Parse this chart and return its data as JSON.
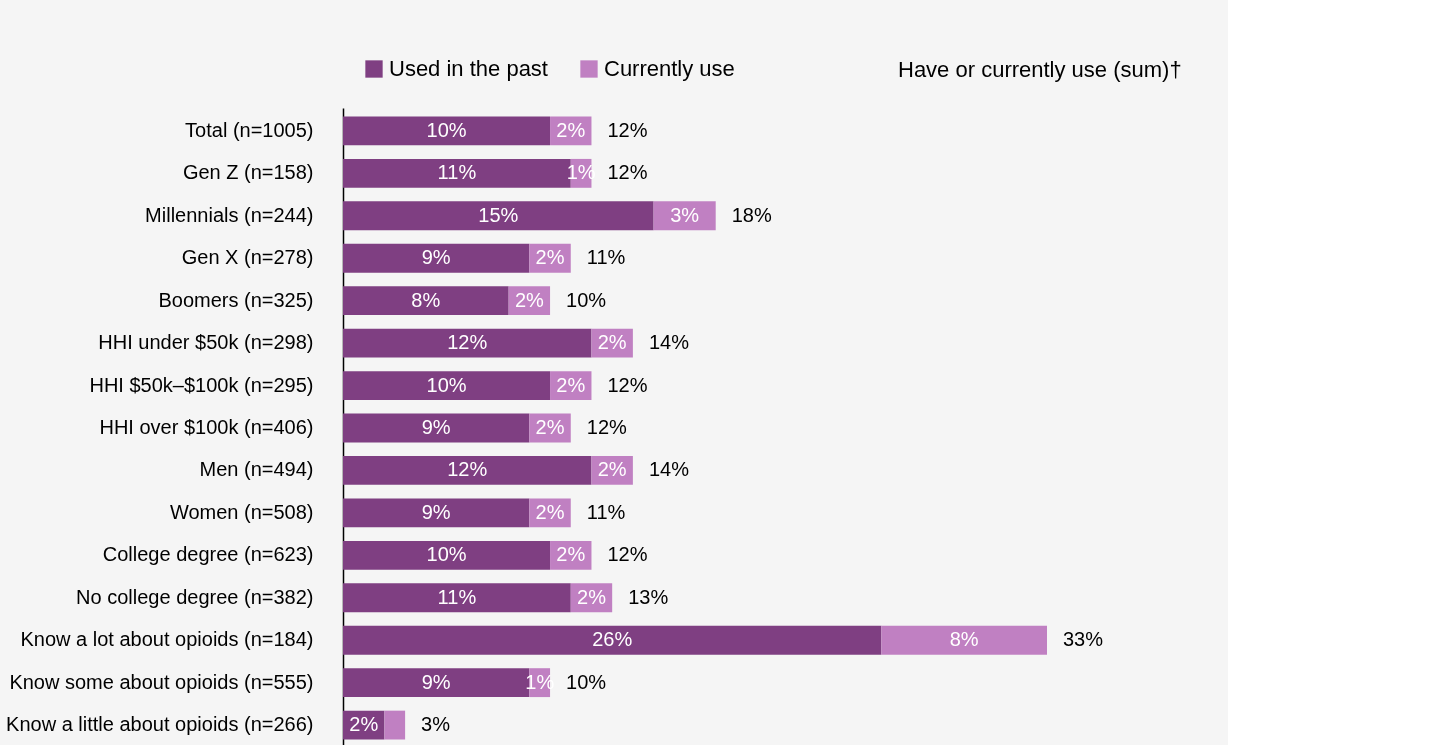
{
  "chart_data": {
    "type": "bar",
    "orientation": "horizontal",
    "stacked": true,
    "legend": "top",
    "grid": false,
    "categories": [
      "Total (n=1005)",
      "Gen Z (n=158)",
      "Millennials (n=244)",
      "Gen X (n=278)",
      "Boomers (n=325)",
      "HHI under $50k (n=298)",
      "HHI $50k–$100k (n=295)",
      "HHI over $100k (n=406)",
      "Men (n=494)",
      "Women (n=508)",
      "College degree (n=623)",
      "No college degree (n=382)",
      "Know a lot about opioids (n=184)",
      "Know some about opioids (n=555)",
      "Know a little about opioids (n=266)"
    ],
    "series": [
      {
        "name": "Used in the past",
        "color": "#7f3f82",
        "values": [
          10,
          11,
          15,
          9,
          8,
          12,
          10,
          9,
          12,
          9,
          10,
          11,
          26,
          9,
          2
        ],
        "value_labels": [
          "10%",
          "11%",
          "15%",
          "9%",
          "8%",
          "12%",
          "10%",
          "9%",
          "12%",
          "9%",
          "10%",
          "11%",
          "26%",
          "9%",
          "2%"
        ]
      },
      {
        "name": "Currently use",
        "color": "#c080c2",
        "values": [
          2,
          1,
          3,
          2,
          2,
          2,
          2,
          2,
          2,
          2,
          2,
          2,
          8,
          1,
          1
        ],
        "value_labels": [
          "2%",
          "1%",
          "3%",
          "2%",
          "2%",
          "2%",
          "2%",
          "2%",
          "2%",
          "2%",
          "2%",
          "2%",
          "8%",
          "1%",
          null
        ]
      }
    ],
    "totals": [
      "12%",
      "12%",
      "18%",
      "11%",
      "10%",
      "14%",
      "12%",
      "12%",
      "14%",
      "11%",
      "12%",
      "13%",
      "33%",
      "10%",
      "3%"
    ],
    "annotations": [
      "Have or currently use (sum)†"
    ]
  }
}
